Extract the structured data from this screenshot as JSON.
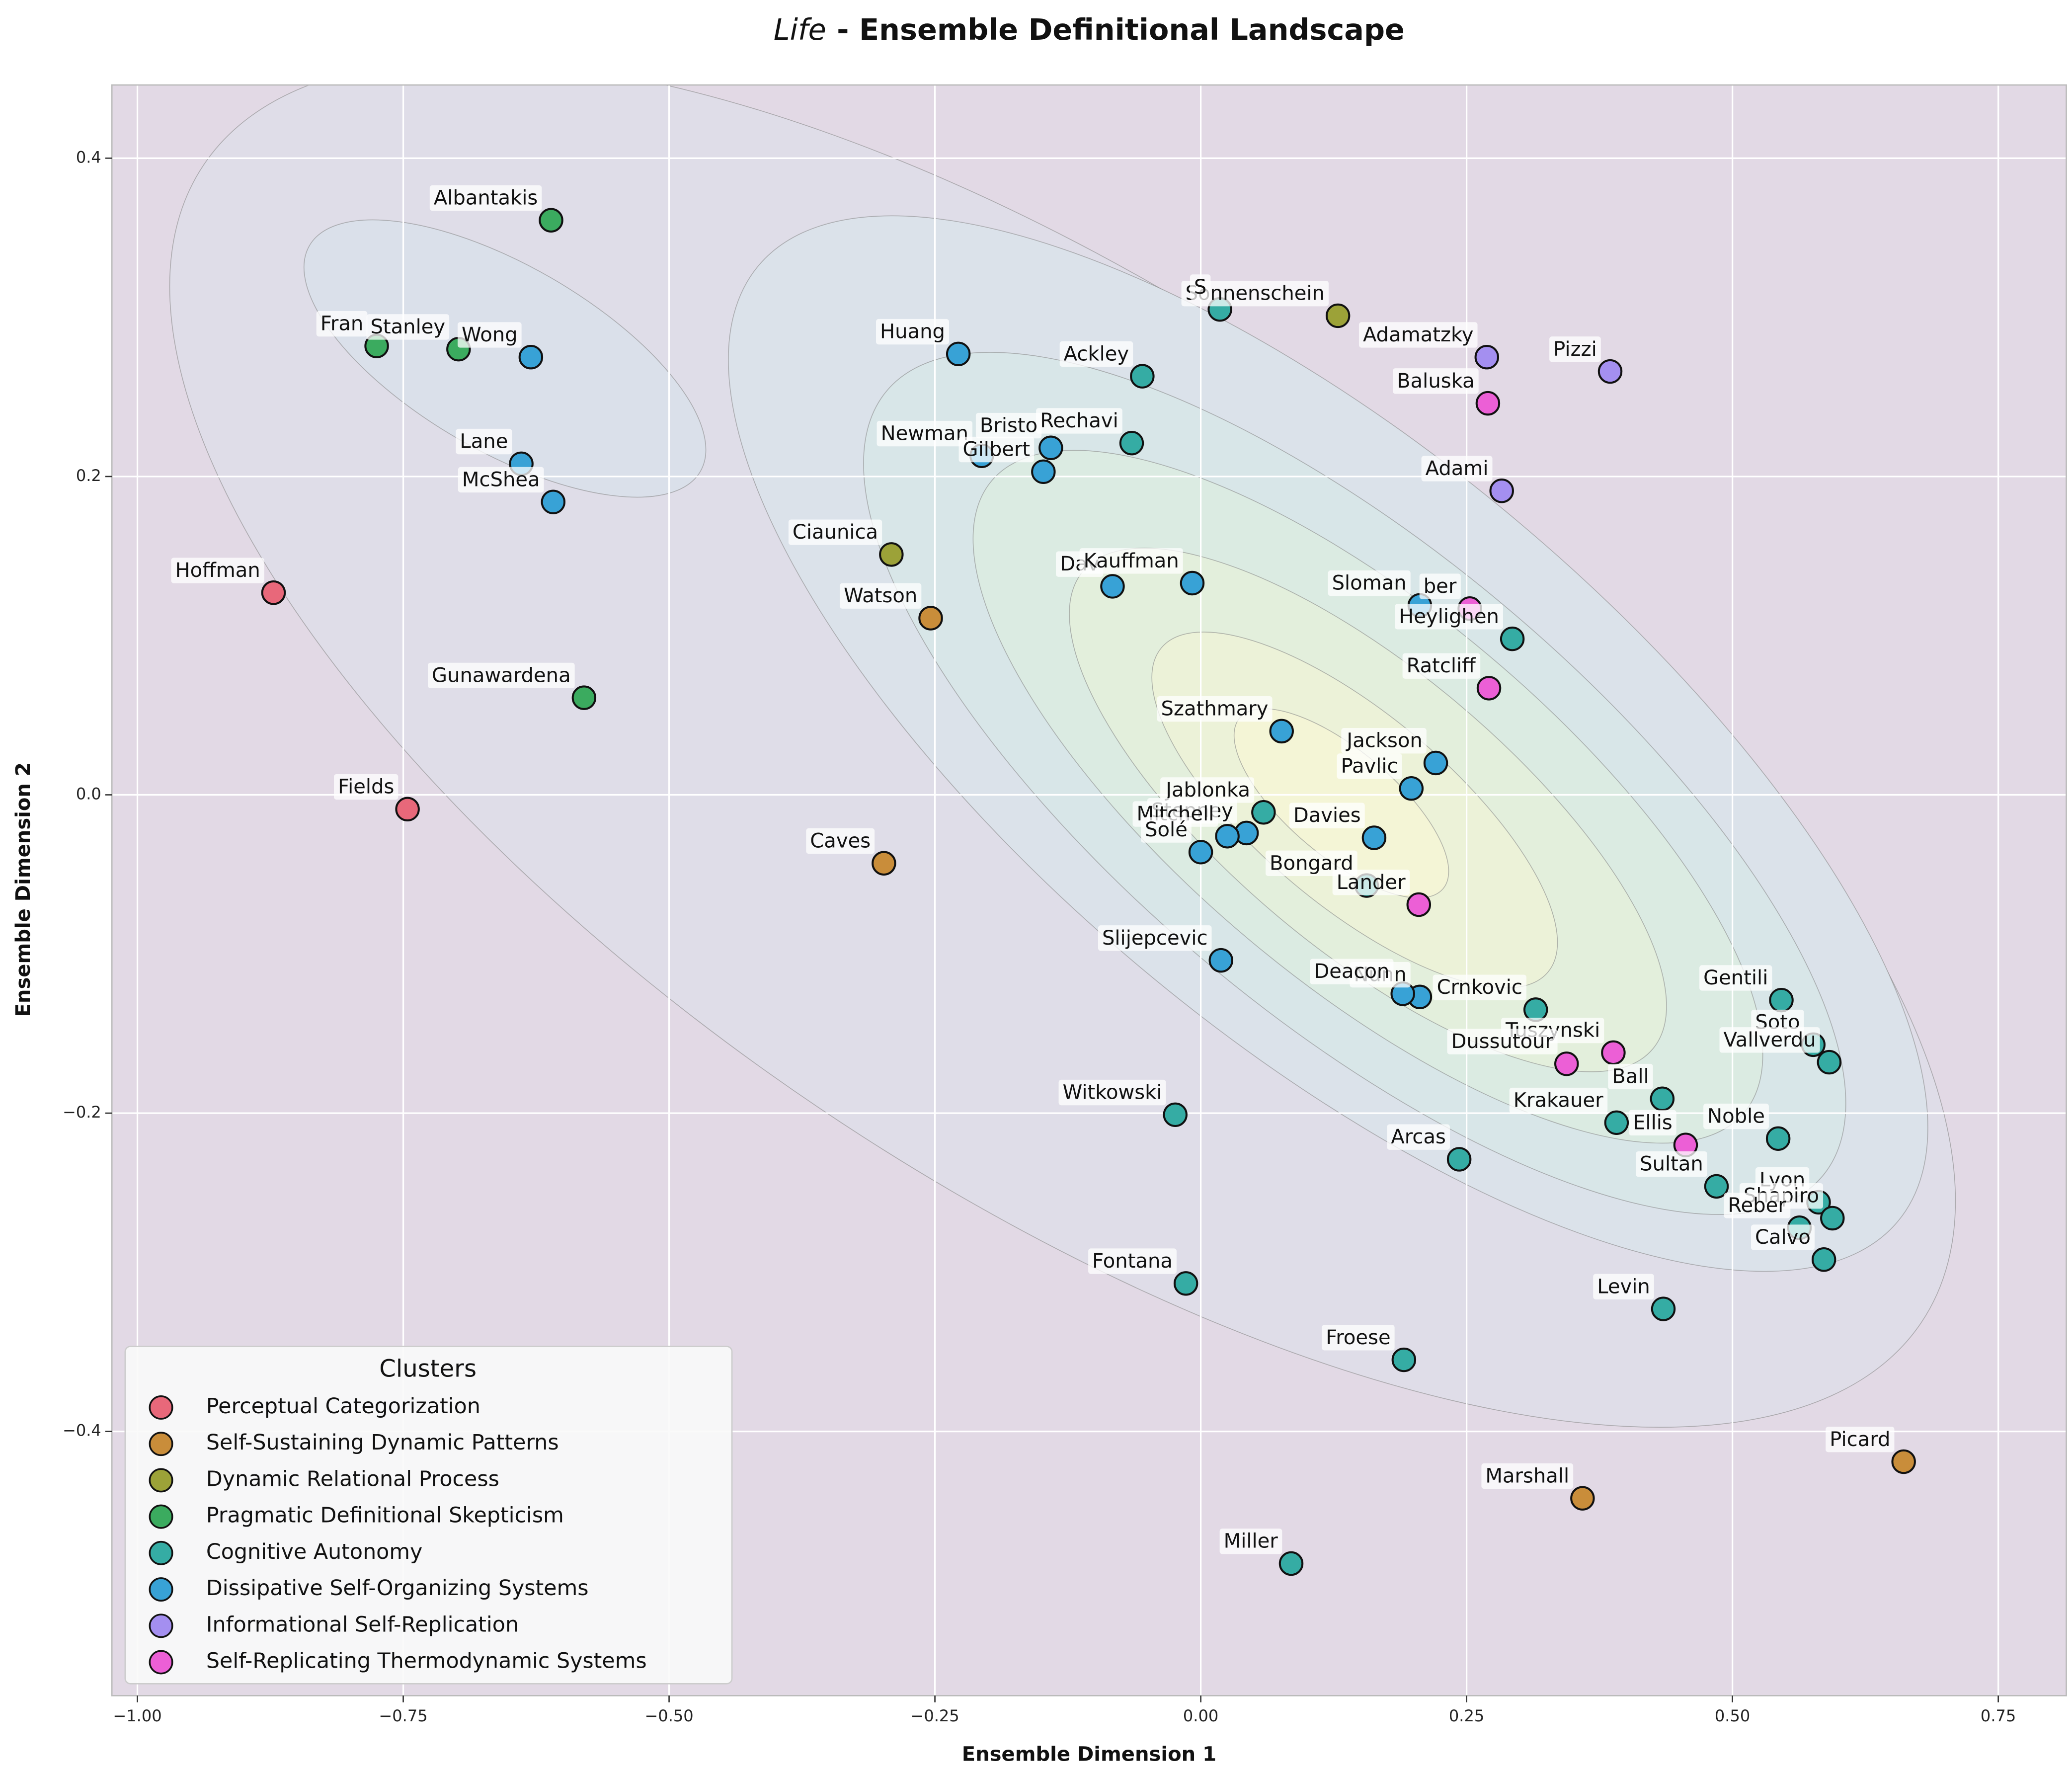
{
  "chart_data": {
    "type": "scatter",
    "title_emphasis": "Life",
    "title": "- Ensemble Definitional Landscape",
    "x_label": "Ensemble Dimension 1",
    "y_label": "Ensemble Dimension 2",
    "legend_title": "Clusters",
    "legend_position": "lower left",
    "grid": true,
    "xlim": [
      -1.024,
      0.814
    ],
    "ylim": [
      -0.566,
      0.446
    ],
    "xticks": [
      {
        "value": -1.0,
        "label": "−1.00"
      },
      {
        "value": -0.75,
        "label": "−0.75"
      },
      {
        "value": -0.5,
        "label": "−0.50"
      },
      {
        "value": -0.25,
        "label": "−0.25"
      },
      {
        "value": 0,
        "label": "0.00"
      },
      0.25,
      {
        "value": 0.5,
        "label": "0.50"
      },
      0.75
    ],
    "yticks": [
      {
        "value": -0.4,
        "label": "−0.4"
      },
      {
        "value": -0.2,
        "label": "−0.2"
      },
      {
        "value": 0,
        "label": "0.0"
      },
      0.2,
      0.4
    ],
    "series": [
      {
        "name": "Perceptual Categorization",
        "color": "#e8687a",
        "labels": [
          "Hoffman",
          "Fields"
        ],
        "x": [
          -0.872,
          -0.746
        ],
        "y": [
          0.127,
          -0.009
        ]
      },
      {
        "name": "Self-Sustaining Dynamic Patterns",
        "color": "#c98d3a",
        "labels": [
          "Watson",
          "Caves",
          "Picard",
          "Marshall"
        ],
        "x": [
          -0.254,
          -0.298,
          0.661,
          0.359
        ],
        "y": [
          0.111,
          -0.043,
          -0.419,
          -0.442
        ]
      },
      {
        "name": "Dynamic Relational Process",
        "color": "#9ca238",
        "labels": [
          "Ciaunica",
          "Sonnenschein"
        ],
        "x": [
          -0.291,
          0.129
        ],
        "y": [
          0.151,
          0.301
        ]
      },
      {
        "name": "Pragmatic Definitional Skepticism",
        "color": "#3bab5f",
        "labels": [
          "Albantakis",
          "Fran",
          "Stanley",
          "Gunawardena"
        ],
        "x": [
          -0.611,
          -0.775,
          -0.698,
          -0.58
        ],
        "y": [
          0.361,
          0.282,
          0.28,
          0.061
        ]
      },
      {
        "name": "Cognitive Autonomy",
        "color": "#35aca4",
        "labels": [
          "S",
          "Ackley",
          "Rechavi",
          "Heylighen",
          "Jablonka",
          "Bongard",
          "Crnkovic",
          "Witkowski",
          "Fontana",
          "Froese",
          "Miller",
          "Arcas",
          "Levin",
          "Gentili",
          "Soto",
          "Vallverdu",
          "Ball",
          "Krakauer",
          "Noble",
          "Sultan",
          "Lyon",
          "Shapiro",
          "Reber",
          "Calvo"
        ],
        "x": [
          0.018,
          -0.055,
          -0.065,
          0.293,
          0.059,
          0.156,
          0.315,
          -0.024,
          -0.014,
          0.191,
          0.085,
          0.243,
          0.435,
          0.546,
          0.576,
          0.591,
          0.434,
          0.391,
          0.543,
          0.485,
          0.581,
          0.594,
          0.563,
          0.586
        ],
        "y": [
          0.305,
          0.263,
          0.221,
          0.098,
          -0.011,
          -0.057,
          -0.135,
          -0.201,
          -0.307,
          -0.355,
          -0.483,
          -0.229,
          -0.323,
          -0.129,
          -0.157,
          -0.168,
          -0.191,
          -0.206,
          -0.216,
          -0.246,
          -0.256,
          -0.266,
          -0.272,
          -0.292
        ]
      },
      {
        "name": "Dissipative Self-Organizing Systems",
        "color": "#38a2d6",
        "labels": [
          "Wong",
          "Lane",
          "McShea",
          "Huang",
          "Newman",
          "Gilbert",
          "Bristo",
          "Dav",
          "Kauffman",
          "Sloman",
          "Szathmary",
          "Jackson",
          "Pavlic",
          "Stepney",
          "Mitchell",
          "Solé",
          "Davies",
          "Slijepcevic",
          "Nunn",
          "Deacon"
        ],
        "x": [
          -0.63,
          -0.639,
          -0.609,
          -0.228,
          -0.206,
          -0.148,
          -0.141,
          -0.083,
          -0.008,
          0.206,
          0.076,
          0.221,
          0.198,
          0.043,
          0.025,
          0.0,
          0.163,
          0.019,
          0.206,
          0.19
        ],
        "y": [
          0.275,
          0.208,
          0.184,
          0.277,
          0.213,
          0.203,
          0.218,
          0.131,
          0.133,
          0.119,
          0.04,
          0.02,
          0.004,
          -0.024,
          -0.026,
          -0.036,
          -0.027,
          -0.104,
          -0.127,
          -0.125
        ]
      },
      {
        "name": "Informational Self-Replication",
        "color": "#a48ff0",
        "labels": [
          "Adamatzky",
          "Pizzi",
          "Adami"
        ],
        "x": [
          0.269,
          0.385,
          0.283
        ],
        "y": [
          0.275,
          0.266,
          0.191
        ]
      },
      {
        "name": "Self-Replicating Thermodynamic Systems",
        "color": "#ec5fd6",
        "labels": [
          "Baluska",
          "ber",
          "Ratcliff",
          "Lander",
          "Tuszynski",
          "Dussutour",
          "Ellis"
        ],
        "x": [
          0.27,
          0.253,
          0.271,
          0.205,
          0.388,
          0.344,
          0.456
        ],
        "y": [
          0.246,
          0.117,
          0.067,
          -0.069,
          -0.162,
          -0.169,
          -0.22
        ]
      }
    ]
  }
}
